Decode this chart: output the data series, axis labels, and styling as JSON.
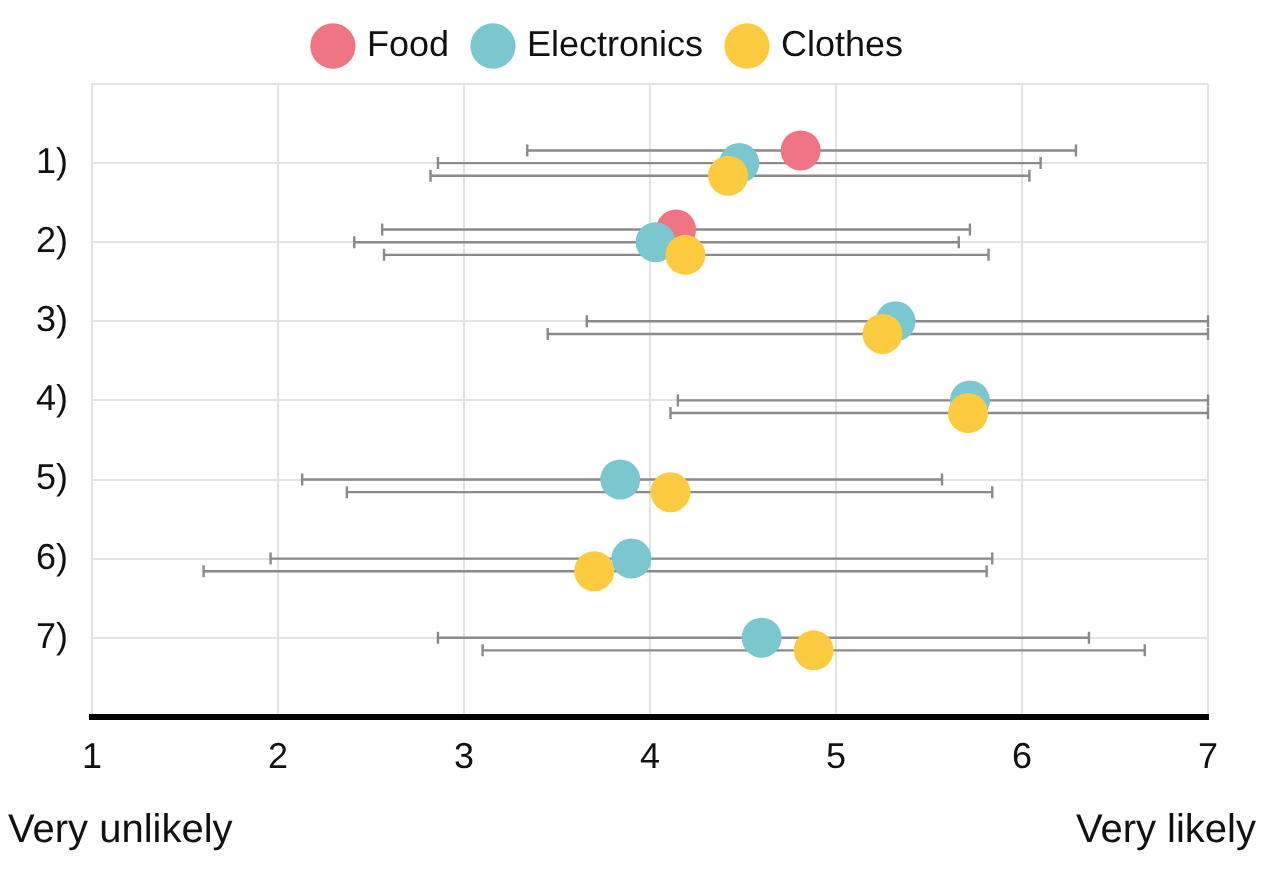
{
  "chart_data": {
    "type": "scatter",
    "categories": [
      "1)",
      "2)",
      "3)",
      "4)",
      "5)",
      "6)",
      "7)"
    ],
    "series": [
      {
        "name": "Food",
        "color": "#f07583",
        "values": [
          4.81,
          4.14,
          null,
          null,
          null,
          null,
          null
        ],
        "errors": [
          [
            3.34,
            6.29
          ],
          [
            2.56,
            5.72
          ],
          null,
          null,
          null,
          null,
          null
        ]
      },
      {
        "name": "Electronics",
        "color": "#7ac7d0",
        "values": [
          4.48,
          4.03,
          5.32,
          5.72,
          3.84,
          3.9,
          4.6
        ],
        "errors": [
          [
            2.86,
            6.1
          ],
          [
            2.41,
            5.66
          ],
          [
            3.66,
            7
          ],
          [
            4.15,
            7
          ],
          [
            2.13,
            5.57
          ],
          [
            1.96,
            5.84
          ],
          [
            2.86,
            6.36
          ]
        ]
      },
      {
        "name": "Clothes",
        "color": "#fccb40",
        "values": [
          4.42,
          4.19,
          5.25,
          5.71,
          4.11,
          3.7,
          4.88
        ],
        "errors": [
          [
            2.82,
            6.04
          ],
          [
            2.57,
            5.82
          ],
          [
            3.45,
            7
          ],
          [
            4.11,
            7
          ],
          [
            2.37,
            5.84
          ],
          [
            1.6,
            5.81
          ],
          [
            3.1,
            6.66
          ]
        ]
      }
    ],
    "orientation": "horizontal",
    "xlim": [
      1,
      7
    ],
    "xticks": [
      1,
      2,
      3,
      4,
      5,
      6,
      7
    ],
    "grid": true,
    "legend": "top",
    "marker": "circle",
    "annotations": [
      "Very unlikely",
      "Very likely"
    ]
  }
}
